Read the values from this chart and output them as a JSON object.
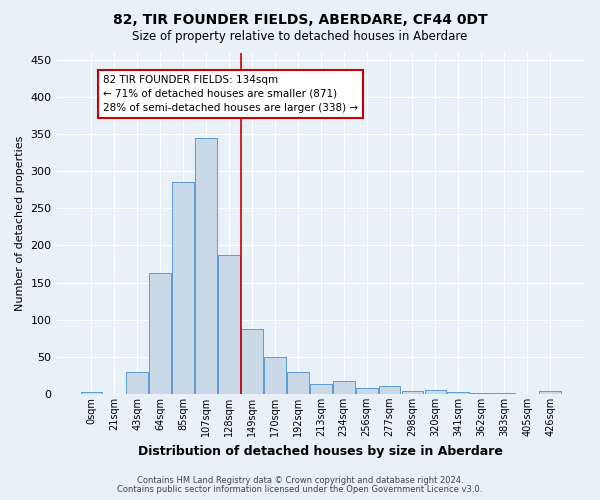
{
  "title": "82, TIR FOUNDER FIELDS, ABERDARE, CF44 0DT",
  "subtitle": "Size of property relative to detached houses in Aberdare",
  "xlabel": "Distribution of detached houses by size in Aberdare",
  "ylabel": "Number of detached properties",
  "footnote1": "Contains HM Land Registry data © Crown copyright and database right 2024.",
  "footnote2": "Contains public sector information licensed under the Open Government Licence v3.0.",
  "bar_labels": [
    "0sqm",
    "21sqm",
    "43sqm",
    "64sqm",
    "85sqm",
    "107sqm",
    "128sqm",
    "149sqm",
    "170sqm",
    "192sqm",
    "213sqm",
    "234sqm",
    "256sqm",
    "277sqm",
    "298sqm",
    "320sqm",
    "341sqm",
    "362sqm",
    "383sqm",
    "405sqm",
    "426sqm"
  ],
  "bar_values": [
    3,
    0,
    30,
    163,
    285,
    345,
    187,
    88,
    50,
    30,
    13,
    18,
    8,
    10,
    4,
    5,
    2,
    1,
    1,
    0,
    4
  ],
  "bar_color": "#c9d9e8",
  "bar_edge_color": "#5b9bd5",
  "bg_color": "#e8f0f8",
  "grid_color": "#ffffff",
  "vline_color": "#cc0000",
  "annotation_text": "82 TIR FOUNDER FIELDS: 134sqm\n← 71% of detached houses are smaller (871)\n28% of semi-detached houses are larger (338) →",
  "annotation_box_edge": "#cc0000",
  "ylim": [
    0,
    460
  ],
  "yticks": [
    0,
    50,
    100,
    150,
    200,
    250,
    300,
    350,
    400,
    450
  ]
}
